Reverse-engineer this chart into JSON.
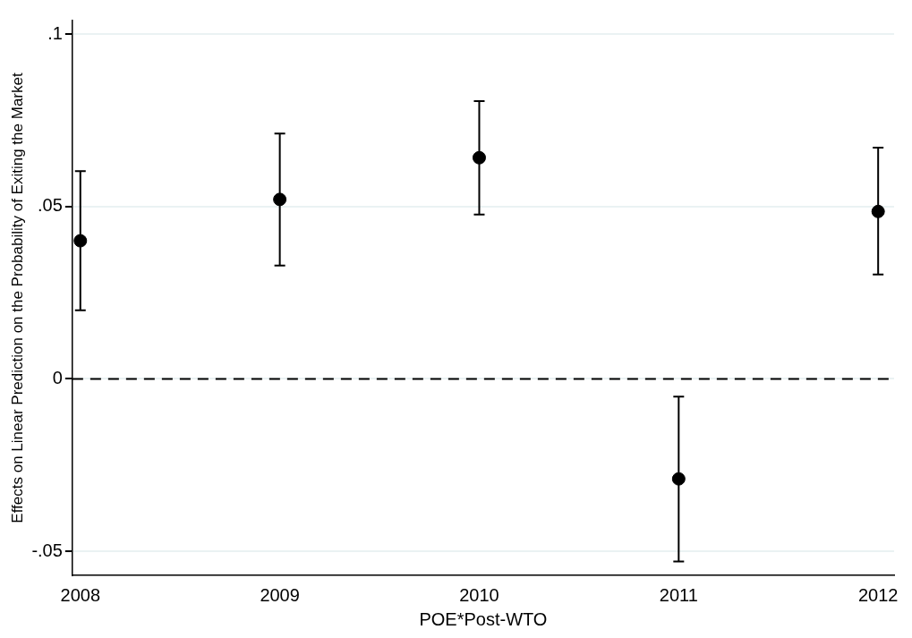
{
  "chart_data": {
    "type": "scatter",
    "xlabel": "POE*Post-WTO",
    "ylabel": "Effects on Linear Prediction on the Probability of Exiting the Market",
    "x": [
      2008,
      2009,
      2010,
      2011,
      2012
    ],
    "series": [
      {
        "color": "#000000",
        "values": [
          0.0401,
          0.0521,
          0.0642,
          -0.029,
          0.0486
        ],
        "errors": [
          [
            0.0199,
            0.0603
          ],
          [
            0.0329,
            0.0712
          ],
          [
            0.0477,
            0.0806
          ],
          [
            -0.053,
            -0.0051
          ],
          [
            0.0303,
            0.0671
          ]
        ]
      }
    ],
    "xlim": [
      2007.96,
      2012.08
    ],
    "xticks": [
      2008,
      2009,
      2010,
      2011,
      2012
    ],
    "ylim": [
      -0.057,
      0.104
    ],
    "yticks": [
      {
        "value": -0.05,
        "label": "-.05"
      },
      {
        "value": 0,
        "label": "0"
      },
      {
        "value": 0.05,
        "label": ".05"
      },
      {
        "value": 0.1,
        "label": ".1"
      }
    ],
    "grid": "y",
    "marker": "circle",
    "legend": false,
    "ref_lines": [
      {
        "axis": "y",
        "value": 0,
        "color": "#000000",
        "line_style": "dashed"
      }
    ]
  }
}
